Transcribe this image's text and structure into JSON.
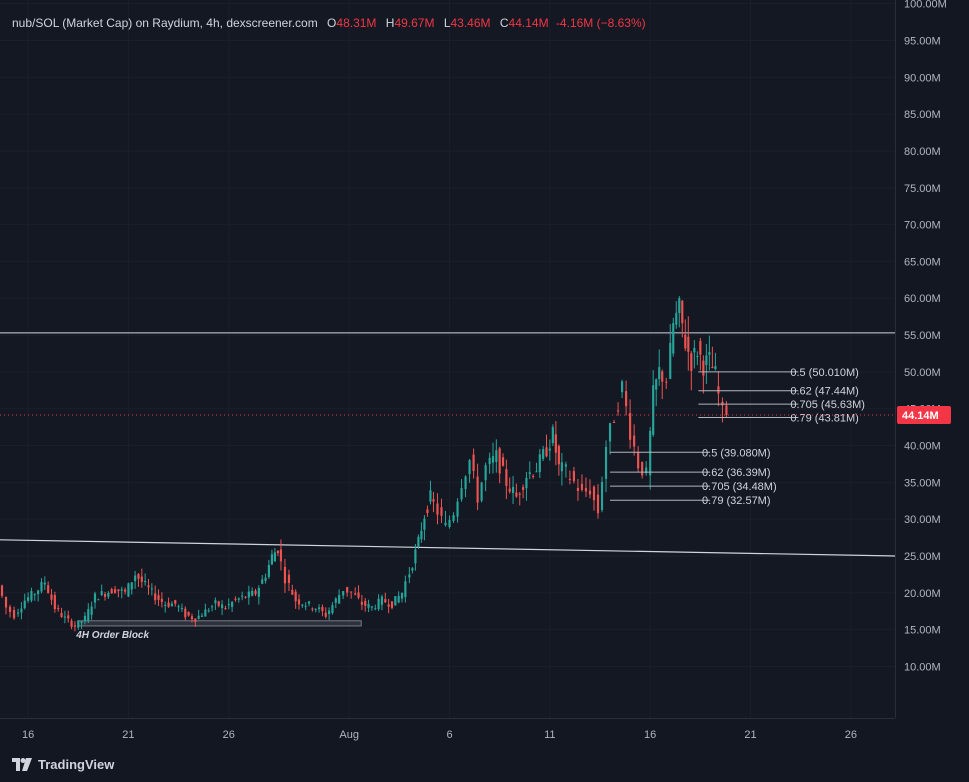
{
  "legend": {
    "symbol": "nub/SOL (Market Cap) on Raydium, 4h, dexscreener.com",
    "open_label": "O",
    "open": "48.31M",
    "high_label": "H",
    "high": "49.67M",
    "low_label": "L",
    "low": "43.46M",
    "close_label": "C",
    "close": "44.14M",
    "change": "-4.16M (−8.63%)"
  },
  "current_price": {
    "label": "44.14M",
    "value": 44.14
  },
  "branding": {
    "name": "TradingView"
  },
  "colors": {
    "background": "#131722",
    "up": "#26a69a",
    "down": "#ef5350",
    "line": "#d1d4dc",
    "price_tag": "#f23645"
  },
  "chart_data": {
    "type": "candlestick",
    "title": "",
    "ylabel": "",
    "xlabel": "",
    "y_unit": "market cap (millions)",
    "ylim": [
      3,
      100.5
    ],
    "y_ticks": [
      {
        "value": 10,
        "label": "10.00M"
      },
      {
        "value": 15,
        "label": "15.00M"
      },
      {
        "value": 20,
        "label": "20.00M"
      },
      {
        "value": 25,
        "label": "25.00M"
      },
      {
        "value": 30,
        "label": "30.00M"
      },
      {
        "value": 35,
        "label": "35.00M"
      },
      {
        "value": 40,
        "label": "40.00M"
      },
      {
        "value": 45,
        "label": "45.00M"
      },
      {
        "value": 50,
        "label": "50.00M"
      },
      {
        "value": 55,
        "label": "55.00M"
      },
      {
        "value": 60,
        "label": "60.00M"
      },
      {
        "value": 65,
        "label": "65.00M"
      },
      {
        "value": 70,
        "label": "70.00M"
      },
      {
        "value": 75,
        "label": "75.00M"
      },
      {
        "value": 80,
        "label": "80.00M"
      },
      {
        "value": 85,
        "label": "85.00M"
      },
      {
        "value": 90,
        "label": "90.00M"
      },
      {
        "value": 95,
        "label": "95.00M"
      },
      {
        "value": 100,
        "label": "100.00M"
      }
    ],
    "x_ticks": [
      {
        "day": 16,
        "label": "16"
      },
      {
        "day": 21,
        "label": "21"
      },
      {
        "day": 26,
        "label": "26"
      },
      {
        "day": 32,
        "label": "Aug"
      },
      {
        "day": 37,
        "label": "6"
      },
      {
        "day": 42,
        "label": "11"
      },
      {
        "day": 47,
        "label": "16"
      },
      {
        "day": 52,
        "label": "21"
      },
      {
        "day": 57,
        "label": "26"
      }
    ],
    "xlim": [
      14.6,
      59.2
    ],
    "close_points": [
      [
        14.7,
        21.0
      ],
      [
        15.1,
        18.0
      ],
      [
        15.5,
        17.0
      ],
      [
        16.0,
        19.0
      ],
      [
        16.5,
        20.0
      ],
      [
        17.0,
        21.5
      ],
      [
        17.5,
        18.0
      ],
      [
        18.0,
        16.5
      ],
      [
        18.5,
        15.5
      ],
      [
        19.0,
        16.5
      ],
      [
        19.5,
        19.5
      ],
      [
        20.0,
        20.0
      ],
      [
        20.5,
        20.5
      ],
      [
        21.0,
        20.0
      ],
      [
        21.5,
        22.5
      ],
      [
        22.0,
        21.0
      ],
      [
        22.5,
        19.5
      ],
      [
        23.0,
        18.5
      ],
      [
        23.5,
        18.5
      ],
      [
        24.0,
        17.0
      ],
      [
        24.5,
        16.5
      ],
      [
        25.0,
        17.5
      ],
      [
        25.5,
        18.5
      ],
      [
        26.0,
        18.0
      ],
      [
        26.5,
        19.0
      ],
      [
        27.0,
        19.5
      ],
      [
        27.5,
        20.0
      ],
      [
        28.0,
        22.5
      ],
      [
        28.3,
        25.0
      ],
      [
        28.6,
        26.0
      ],
      [
        29.0,
        22.0
      ],
      [
        29.5,
        19.0
      ],
      [
        30.0,
        18.5
      ],
      [
        30.5,
        18.0
      ],
      [
        31.0,
        17.0
      ],
      [
        31.5,
        19.0
      ],
      [
        31.9,
        20.5
      ],
      [
        32.3,
        20.0
      ],
      [
        32.8,
        18.5
      ],
      [
        33.3,
        18.0
      ],
      [
        33.8,
        19.0
      ],
      [
        34.3,
        18.5
      ],
      [
        34.8,
        20.0
      ],
      [
        35.0,
        21.5
      ],
      [
        35.3,
        24.0
      ],
      [
        35.6,
        27.0
      ],
      [
        35.9,
        30.5
      ],
      [
        36.2,
        33.0
      ],
      [
        36.6,
        31.0
      ],
      [
        37.0,
        29.0
      ],
      [
        37.4,
        31.0
      ],
      [
        37.8,
        35.0
      ],
      [
        38.2,
        38.0
      ],
      [
        38.6,
        33.0
      ],
      [
        39.0,
        37.0
      ],
      [
        39.5,
        38.5
      ],
      [
        40.0,
        35.0
      ],
      [
        40.5,
        33.0
      ],
      [
        41.0,
        36.0
      ],
      [
        41.5,
        37.0
      ],
      [
        42.0,
        39.5
      ],
      [
        42.3,
        41.5
      ],
      [
        42.6,
        37.0
      ],
      [
        43.0,
        36.5
      ],
      [
        43.4,
        35.0
      ],
      [
        43.8,
        33.5
      ],
      [
        44.2,
        34.0
      ],
      [
        44.6,
        31.0
      ],
      [
        45.0,
        40.0
      ],
      [
        45.4,
        44.0
      ],
      [
        45.8,
        48.0
      ],
      [
        46.2,
        42.0
      ],
      [
        46.6,
        37.5
      ],
      [
        47.0,
        36.0
      ],
      [
        47.3,
        47.0
      ],
      [
        47.6,
        50.0
      ],
      [
        48.0,
        49.0
      ],
      [
        48.3,
        56.5
      ],
      [
        48.6,
        58.5
      ],
      [
        48.9,
        54.0
      ],
      [
        49.2,
        51.5
      ],
      [
        49.5,
        53.0
      ],
      [
        49.8,
        51.0
      ],
      [
        50.1,
        51.5
      ],
      [
        50.4,
        49.5
      ],
      [
        50.8,
        44.14
      ]
    ],
    "annotations": [
      {
        "type": "horizontal-line",
        "y": 55.3
      },
      {
        "type": "trend-line",
        "from": [
          14.6,
          27.2
        ],
        "to": [
          59.2,
          25.0
        ]
      },
      {
        "type": "zone",
        "label": "4H Order Block",
        "x": [
          18.5,
          32.6
        ],
        "y": [
          15.5,
          16.2
        ]
      }
    ],
    "fib_levels": [
      {
        "label": "0.5 (50.010M)",
        "value": 50.01,
        "x_start": 49.4
      },
      {
        "label": "0.62 (47.44M)",
        "value": 47.44,
        "x_start": 49.4
      },
      {
        "label": "0.705 (45.63M)",
        "value": 45.63,
        "x_start": 49.4
      },
      {
        "label": "0.79 (43.81M)",
        "value": 43.81,
        "x_start": 49.4
      },
      {
        "label": "0.5 (39.080M)",
        "value": 39.08,
        "x_start": 45.0
      },
      {
        "label": "0.62 (36.39M)",
        "value": 36.39,
        "x_start": 45.0
      },
      {
        "label": "0.705 (34.48M)",
        "value": 34.48,
        "x_start": 45.0
      },
      {
        "label": "0.79 (32.57M)",
        "value": 32.57,
        "x_start": 45.0
      }
    ]
  }
}
